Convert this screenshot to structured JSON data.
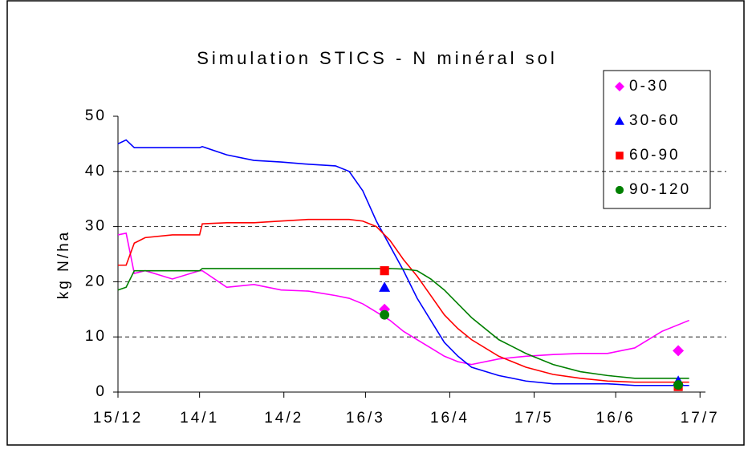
{
  "chart_data": {
    "type": "line",
    "title": "Simulation STICS - N minéral sol",
    "y_label": "kg N/ha",
    "x": [
      0,
      3,
      6,
      10,
      20,
      30,
      31,
      40,
      50,
      60,
      70,
      80,
      85,
      90,
      95,
      100,
      105,
      110,
      115,
      120,
      125,
      130,
      140,
      150,
      160,
      170,
      180,
      190,
      200,
      210
    ],
    "xlim": [
      0,
      216
    ],
    "xticks": [
      {
        "value": 0,
        "label": "15/12"
      },
      {
        "value": 30,
        "label": "14/1"
      },
      {
        "value": 61,
        "label": "14/2"
      },
      {
        "value": 91,
        "label": "16/3"
      },
      {
        "value": 122,
        "label": "16/4"
      },
      {
        "value": 153,
        "label": "17/5"
      },
      {
        "value": 183,
        "label": "16/6"
      },
      {
        "value": 214,
        "label": "17/7"
      }
    ],
    "ylim": [
      0,
      50
    ],
    "yticks": [
      0,
      10,
      20,
      30,
      40,
      50
    ],
    "grid": true,
    "legend": "top-right",
    "obs_x": [
      98,
      206
    ],
    "series": [
      {
        "name": "0-30",
        "color": "#ff00ff",
        "marker": "diamond",
        "values": [
          28.5,
          28.8,
          21.5,
          22,
          20.5,
          22,
          22,
          19,
          19.5,
          18.5,
          18.3,
          17.5,
          17,
          16,
          14.5,
          13,
          11,
          9.5,
          8,
          6.5,
          5.5,
          5,
          6,
          6.5,
          6.8,
          7,
          7,
          8,
          11,
          13
        ],
        "obs_values": [
          15,
          7.5
        ]
      },
      {
        "name": "30-60",
        "color": "#0000ff",
        "marker": "triangle",
        "values": [
          45,
          45.7,
          44.3,
          44.3,
          44.3,
          44.3,
          44.5,
          43,
          42,
          41.7,
          41.3,
          41,
          40,
          36.5,
          31,
          26.5,
          22,
          17,
          13,
          9,
          6.5,
          4.5,
          3,
          2,
          1.5,
          1.5,
          1.5,
          1.2,
          1.2,
          1.2
        ],
        "obs_values": [
          19,
          2
        ]
      },
      {
        "name": "60-90",
        "color": "#ff0000",
        "marker": "square",
        "values": [
          23,
          23,
          27,
          28,
          28.5,
          28.5,
          30.5,
          30.7,
          30.7,
          31,
          31.3,
          31.3,
          31.3,
          31,
          30,
          27.5,
          24,
          21,
          17.5,
          14,
          11.5,
          9.5,
          6.5,
          4.5,
          3.2,
          2.5,
          2,
          1.8,
          1.8,
          1.8
        ],
        "obs_values": [
          22,
          1
        ]
      },
      {
        "name": "90-120",
        "color": "#008000",
        "marker": "circle",
        "values": [
          18.5,
          19,
          22,
          22,
          22,
          22,
          22.4,
          22.4,
          22.4,
          22.4,
          22.4,
          22.4,
          22.4,
          22.4,
          22.4,
          22.4,
          22.3,
          22,
          20.5,
          18.5,
          16,
          13.5,
          9.5,
          7,
          5,
          3.7,
          3,
          2.5,
          2.5,
          2.5
        ],
        "obs_values": [
          14,
          1.3
        ]
      }
    ]
  }
}
